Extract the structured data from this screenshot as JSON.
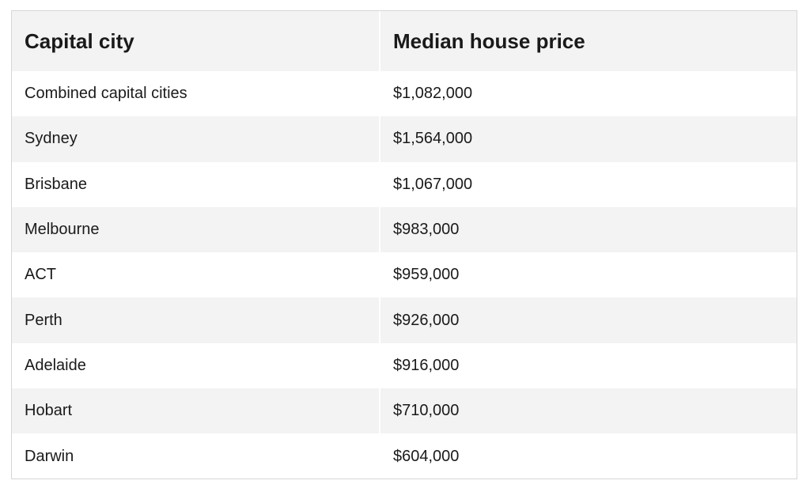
{
  "table": {
    "headers": [
      "Capital city",
      "Median house price"
    ],
    "rows": [
      [
        "Combined capital cities",
        "$1,082,000"
      ],
      [
        "Sydney",
        "$1,564,000"
      ],
      [
        "Brisbane",
        "$1,067,000"
      ],
      [
        "Melbourne",
        "$983,000"
      ],
      [
        "ACT",
        "$959,000"
      ],
      [
        "Perth",
        "$926,000"
      ],
      [
        "Adelaide",
        "$916,000"
      ],
      [
        "Hobart",
        "$710,000"
      ],
      [
        "Darwin",
        "$604,000"
      ]
    ]
  }
}
